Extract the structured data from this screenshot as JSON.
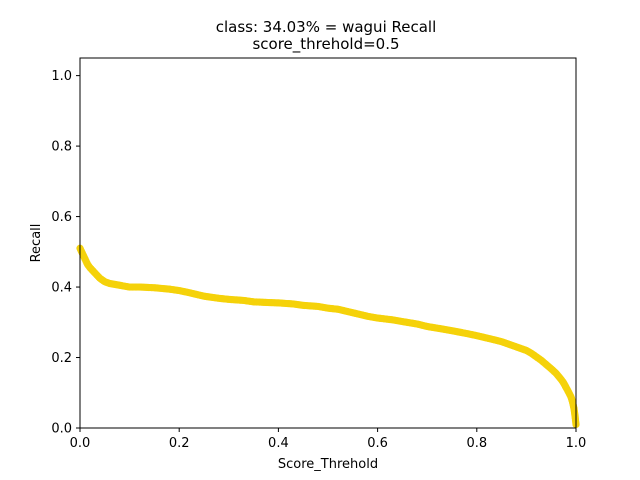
{
  "chart_data": {
    "type": "scatter",
    "title": "class: 34.03% = wagui Recall",
    "subtitle": "score_threhold=0.5",
    "xlabel": "Score_Threhold",
    "ylabel": "Recall",
    "xlim": [
      0,
      1.0
    ],
    "ylim": [
      0,
      1.05
    ],
    "xticks": [
      "0.0",
      "0.2",
      "0.4",
      "0.6",
      "0.8",
      "1.0"
    ],
    "yticks": [
      "0.0",
      "0.2",
      "0.4",
      "0.6",
      "0.8",
      "1.0"
    ],
    "grid": false,
    "series": [
      {
        "color": "#f5d20a",
        "x": [
          0.0,
          0.005,
          0.01,
          0.015,
          0.02,
          0.03,
          0.04,
          0.05,
          0.06,
          0.08,
          0.1,
          0.12,
          0.15,
          0.18,
          0.2,
          0.22,
          0.25,
          0.28,
          0.3,
          0.33,
          0.35,
          0.38,
          0.4,
          0.43,
          0.45,
          0.48,
          0.5,
          0.52,
          0.55,
          0.58,
          0.6,
          0.63,
          0.65,
          0.68,
          0.7,
          0.73,
          0.75,
          0.78,
          0.8,
          0.83,
          0.85,
          0.87,
          0.89,
          0.9,
          0.91,
          0.92,
          0.93,
          0.94,
          0.95,
          0.96,
          0.97,
          0.975,
          0.98,
          0.985,
          0.99,
          0.993,
          0.996,
          0.998,
          1.0
        ],
        "y": [
          0.51,
          0.495,
          0.48,
          0.465,
          0.455,
          0.44,
          0.425,
          0.415,
          0.41,
          0.405,
          0.4,
          0.4,
          0.398,
          0.394,
          0.39,
          0.384,
          0.374,
          0.368,
          0.365,
          0.362,
          0.358,
          0.356,
          0.355,
          0.352,
          0.348,
          0.345,
          0.34,
          0.337,
          0.327,
          0.317,
          0.312,
          0.307,
          0.302,
          0.295,
          0.288,
          0.281,
          0.276,
          0.268,
          0.262,
          0.252,
          0.245,
          0.235,
          0.225,
          0.22,
          0.212,
          0.202,
          0.192,
          0.18,
          0.168,
          0.155,
          0.138,
          0.128,
          0.115,
          0.102,
          0.088,
          0.074,
          0.055,
          0.035,
          0.01
        ]
      }
    ]
  }
}
